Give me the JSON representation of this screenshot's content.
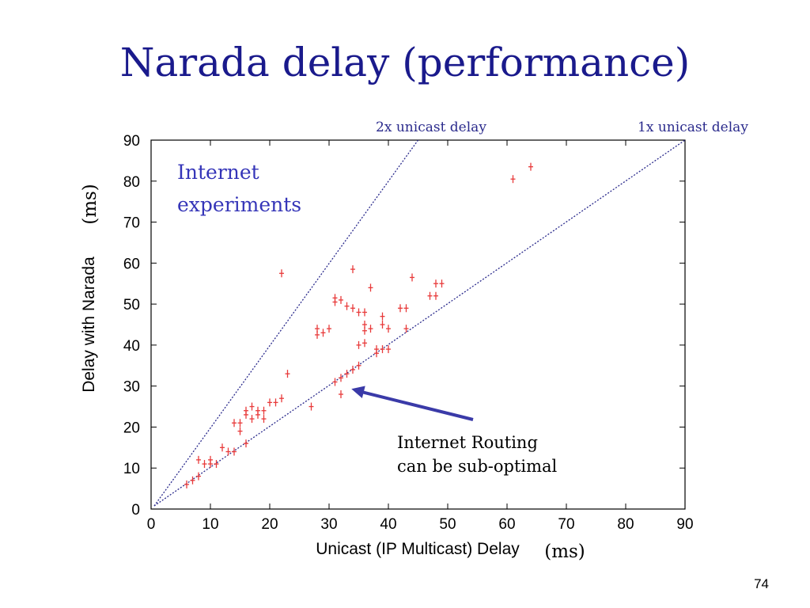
{
  "slide": {
    "title": "Narada delay (performance)",
    "page_number": "74"
  },
  "chart_data": {
    "type": "scatter",
    "xlabel": "Unicast (IP Multicast) Delay",
    "xlabel_unit": "(ms)",
    "ylabel": "Delay with Narada",
    "ylabel_unit": "(ms)",
    "xlim": [
      0,
      90
    ],
    "ylim": [
      0,
      90
    ],
    "xticks": [
      0,
      10,
      20,
      30,
      40,
      50,
      60,
      70,
      80,
      90
    ],
    "yticks": [
      0,
      10,
      20,
      30,
      40,
      50,
      60,
      70,
      80,
      90
    ],
    "grid": false,
    "marker": "+",
    "marker_color": "#e83a3a",
    "reference_lines": [
      {
        "label": "2x unicast delay",
        "slope": 2
      },
      {
        "label": "1x unicast delay",
        "slope": 1
      }
    ],
    "annotation_text": [
      "Internet",
      "experiments"
    ],
    "callout_text": [
      "Internet Routing",
      "can be sub-optimal"
    ],
    "callout_target": {
      "x": 33.5,
      "y": 29.3
    },
    "points": [
      {
        "x": 6,
        "y": 6
      },
      {
        "x": 7,
        "y": 7
      },
      {
        "x": 8,
        "y": 8
      },
      {
        "x": 8,
        "y": 12
      },
      {
        "x": 9,
        "y": 11
      },
      {
        "x": 10,
        "y": 11
      },
      {
        "x": 10,
        "y": 12
      },
      {
        "x": 11,
        "y": 11
      },
      {
        "x": 12,
        "y": 15
      },
      {
        "x": 13,
        "y": 14
      },
      {
        "x": 14,
        "y": 14
      },
      {
        "x": 14,
        "y": 21
      },
      {
        "x": 15,
        "y": 19
      },
      {
        "x": 15,
        "y": 21
      },
      {
        "x": 16,
        "y": 16
      },
      {
        "x": 16,
        "y": 23
      },
      {
        "x": 16,
        "y": 24
      },
      {
        "x": 17,
        "y": 22
      },
      {
        "x": 17,
        "y": 25
      },
      {
        "x": 18,
        "y": 23
      },
      {
        "x": 18,
        "y": 24
      },
      {
        "x": 19,
        "y": 22
      },
      {
        "x": 19,
        "y": 24
      },
      {
        "x": 20,
        "y": 26
      },
      {
        "x": 21,
        "y": 26
      },
      {
        "x": 22,
        "y": 27
      },
      {
        "x": 22,
        "y": 57.5
      },
      {
        "x": 23,
        "y": 33
      },
      {
        "x": 27,
        "y": 25
      },
      {
        "x": 28,
        "y": 42.5
      },
      {
        "x": 28,
        "y": 44
      },
      {
        "x": 29,
        "y": 43
      },
      {
        "x": 30,
        "y": 44
      },
      {
        "x": 31,
        "y": 31
      },
      {
        "x": 31,
        "y": 50.5
      },
      {
        "x": 31,
        "y": 51.5
      },
      {
        "x": 32,
        "y": 28
      },
      {
        "x": 32,
        "y": 32
      },
      {
        "x": 32,
        "y": 51
      },
      {
        "x": 33,
        "y": 33
      },
      {
        "x": 33,
        "y": 49.5
      },
      {
        "x": 34,
        "y": 34
      },
      {
        "x": 34,
        "y": 49
      },
      {
        "x": 34,
        "y": 58.5
      },
      {
        "x": 35,
        "y": 35
      },
      {
        "x": 35,
        "y": 40
      },
      {
        "x": 35,
        "y": 48
      },
      {
        "x": 36,
        "y": 40.5
      },
      {
        "x": 36,
        "y": 43.5
      },
      {
        "x": 36,
        "y": 45
      },
      {
        "x": 36,
        "y": 48
      },
      {
        "x": 37,
        "y": 44
      },
      {
        "x": 37,
        "y": 54
      },
      {
        "x": 38,
        "y": 38
      },
      {
        "x": 38,
        "y": 39
      },
      {
        "x": 39,
        "y": 39
      },
      {
        "x": 39,
        "y": 45
      },
      {
        "x": 39,
        "y": 47
      },
      {
        "x": 40,
        "y": 39
      },
      {
        "x": 40,
        "y": 44
      },
      {
        "x": 42,
        "y": 49
      },
      {
        "x": 43,
        "y": 44
      },
      {
        "x": 43,
        "y": 49
      },
      {
        "x": 44,
        "y": 56.5
      },
      {
        "x": 47,
        "y": 52
      },
      {
        "x": 48,
        "y": 52
      },
      {
        "x": 48,
        "y": 55
      },
      {
        "x": 49,
        "y": 55
      },
      {
        "x": 61,
        "y": 80.5
      },
      {
        "x": 64,
        "y": 83.5
      }
    ]
  },
  "colors": {
    "title": "#1a1a8c",
    "ref_label": "#2a2a8c",
    "annotation": "#3535b8",
    "arrow": "#3a3aa8",
    "marker": "#e83a3a",
    "ref_line": "#2a2a8c"
  }
}
